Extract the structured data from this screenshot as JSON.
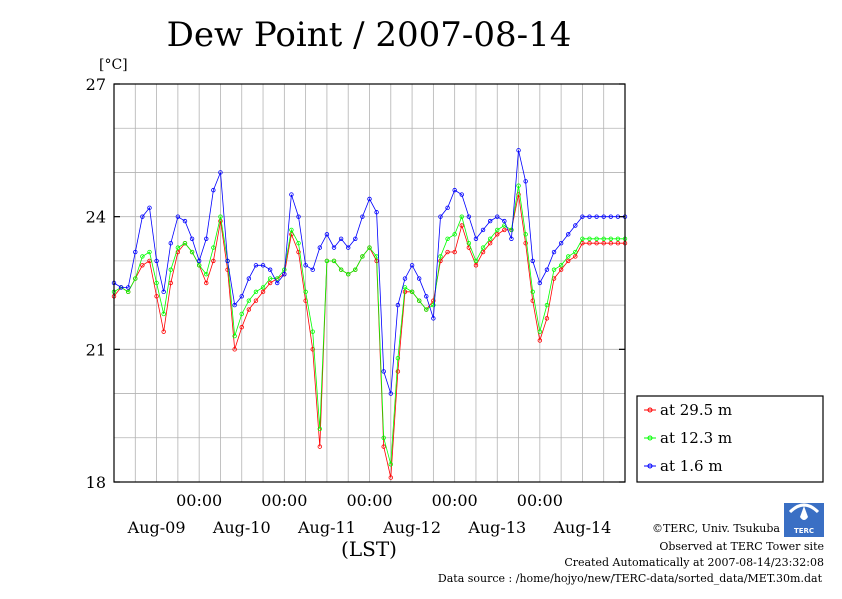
{
  "chart_data": {
    "type": "line",
    "title": "Dew Point / 2007-08-14",
    "ylabel": "[°C]",
    "xlabel": "(LST)",
    "ylim": [
      18,
      27
    ],
    "y_ticks": [
      "27",
      "24",
      "21",
      "18"
    ],
    "x_midnight_labels": [
      "00:00",
      "00:00",
      "00:00",
      "00:00",
      "00:00"
    ],
    "x_day_labels": [
      "Aug-09",
      "Aug-10",
      "Aug-11",
      "Aug-12",
      "Aug-13",
      "Aug-14"
    ],
    "x_range_hours": [
      0,
      144
    ],
    "grid": true,
    "legend_position": "right",
    "series": [
      {
        "name": "at 29.5 m",
        "color": "#ff0000",
        "x_hours": [
          0,
          2,
          4,
          6,
          8,
          10,
          12,
          14,
          16,
          18,
          20,
          22,
          24,
          26,
          28,
          30,
          32,
          34,
          36,
          38,
          40,
          42,
          44,
          46,
          48,
          50,
          52,
          54,
          56,
          58,
          60,
          62,
          64,
          66,
          68,
          70,
          72,
          74,
          76,
          78,
          80,
          82,
          84,
          86,
          88,
          90,
          92,
          94,
          96,
          98,
          100,
          102,
          104,
          106,
          108,
          110,
          112,
          114,
          116,
          118,
          120,
          122,
          124,
          126,
          128,
          130,
          132,
          134,
          136,
          138,
          140,
          142,
          144
        ],
        "values": [
          22.2,
          22.4,
          22.3,
          22.6,
          22.9,
          23.0,
          22.2,
          21.4,
          22.5,
          23.2,
          23.4,
          23.2,
          22.9,
          22.5,
          23.0,
          23.9,
          22.8,
          21.0,
          21.5,
          21.9,
          22.1,
          22.3,
          22.5,
          22.6,
          22.7,
          23.6,
          23.2,
          22.1,
          21.0,
          18.8,
          23.0,
          23.0,
          22.8,
          22.7,
          22.8,
          23.1,
          23.3,
          23.0,
          18.8,
          18.1,
          20.5,
          22.3,
          22.3,
          22.1,
          21.9,
          22.1,
          23.0,
          23.2,
          23.2,
          23.8,
          23.3,
          22.9,
          23.2,
          23.4,
          23.6,
          23.7,
          23.7,
          24.5,
          23.4,
          22.1,
          21.2,
          21.7,
          22.6,
          22.8,
          23.0,
          23.1,
          23.4,
          23.4,
          23.4,
          23.4,
          23.4,
          23.4,
          23.4
        ]
      },
      {
        "name": "at 12.3 m",
        "color": "#00ff00",
        "x_hours": [
          0,
          2,
          4,
          6,
          8,
          10,
          12,
          14,
          16,
          18,
          20,
          22,
          24,
          26,
          28,
          30,
          32,
          34,
          36,
          38,
          40,
          42,
          44,
          46,
          48,
          50,
          52,
          54,
          56,
          58,
          60,
          62,
          64,
          66,
          68,
          70,
          72,
          74,
          76,
          78,
          80,
          82,
          84,
          86,
          88,
          90,
          92,
          94,
          96,
          98,
          100,
          102,
          104,
          106,
          108,
          110,
          112,
          114,
          116,
          118,
          120,
          122,
          124,
          126,
          128,
          130,
          132,
          134,
          136,
          138,
          140,
          142,
          144
        ],
        "values": [
          22.3,
          22.4,
          22.3,
          22.6,
          23.1,
          23.2,
          22.5,
          21.8,
          22.8,
          23.3,
          23.4,
          23.2,
          22.9,
          22.7,
          23.3,
          24.0,
          23.0,
          21.3,
          21.8,
          22.1,
          22.3,
          22.4,
          22.6,
          22.6,
          22.8,
          23.7,
          23.4,
          22.3,
          21.4,
          19.2,
          23.0,
          23.0,
          22.8,
          22.7,
          22.8,
          23.1,
          23.3,
          23.1,
          19.0,
          18.4,
          20.8,
          22.4,
          22.3,
          22.1,
          21.9,
          22.0,
          23.1,
          23.5,
          23.6,
          24.0,
          23.4,
          23.0,
          23.3,
          23.5,
          23.7,
          23.8,
          23.7,
          24.7,
          23.6,
          22.3,
          21.4,
          22.0,
          22.8,
          22.9,
          23.1,
          23.2,
          23.5,
          23.5,
          23.5,
          23.5,
          23.5,
          23.5,
          23.5
        ]
      },
      {
        "name": "at 1.6 m",
        "color": "#0000ff",
        "x_hours": [
          0,
          2,
          4,
          6,
          8,
          10,
          12,
          14,
          16,
          18,
          20,
          22,
          24,
          26,
          28,
          30,
          32,
          34,
          36,
          38,
          40,
          42,
          44,
          46,
          48,
          50,
          52,
          54,
          56,
          58,
          60,
          62,
          64,
          66,
          68,
          70,
          72,
          74,
          76,
          78,
          80,
          82,
          84,
          86,
          88,
          90,
          92,
          94,
          96,
          98,
          100,
          102,
          104,
          106,
          108,
          110,
          112,
          114,
          116,
          118,
          120,
          122,
          124,
          126,
          128,
          130,
          132,
          134,
          136,
          138,
          140,
          142,
          144
        ],
        "values": [
          22.5,
          22.4,
          22.4,
          23.2,
          24.0,
          24.2,
          23.0,
          22.3,
          23.4,
          24.0,
          23.9,
          23.5,
          23.0,
          23.5,
          24.6,
          25.0,
          23.0,
          22.0,
          22.2,
          22.6,
          22.9,
          22.9,
          22.8,
          22.5,
          22.7,
          24.5,
          24.0,
          22.9,
          22.8,
          23.3,
          23.6,
          23.3,
          23.5,
          23.3,
          23.5,
          24.0,
          24.4,
          24.1,
          20.5,
          20.0,
          22.0,
          22.6,
          22.9,
          22.6,
          22.2,
          21.7,
          24.0,
          24.2,
          24.6,
          24.5,
          24.0,
          23.5,
          23.7,
          23.9,
          24.0,
          23.9,
          23.5,
          25.5,
          24.8,
          23.0,
          22.5,
          22.8,
          23.2,
          23.4,
          23.6,
          23.8,
          24.0,
          24.0,
          24.0,
          24.0,
          24.0,
          24.0,
          24.0
        ]
      }
    ]
  },
  "credits": {
    "copyright": "©TERC, Univ. Tsukuba",
    "observed": "Observed at TERC Tower site",
    "created": "Created Automatically at 2007-08-14/23:32:08",
    "source": "Data source : /home/hojyo/new/TERC-data/sorted_data/MET.30m.dat",
    "logo_text": "TERC"
  }
}
